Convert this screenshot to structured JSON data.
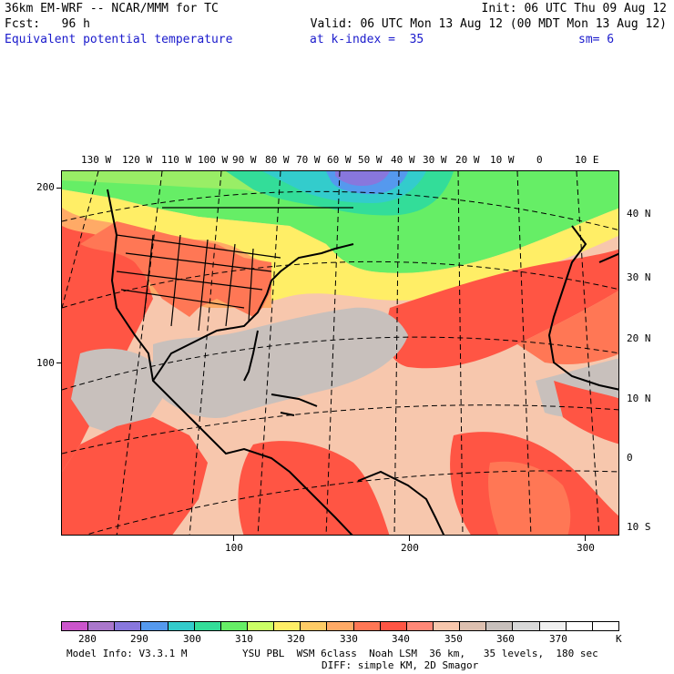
{
  "header": {
    "line1_left": "36km EM-WRF -- NCAR/MMM for TC",
    "line1_right": "Init: 06 UTC Thu 09 Aug 12",
    "line2_left": "Fcst:   96 h",
    "line2_right": "Valid: 06 UTC Mon 13 Aug 12 (00 MDT Mon 13 Aug 12)",
    "line3_field": "Equivalent potential temperature",
    "line3_kindex": "at k-index =  35",
    "line3_sm": "sm= 6"
  },
  "map": {
    "lon_labels": [
      "130 W",
      "120 W",
      "110 W",
      "100 W",
      "90 W",
      "80 W",
      "70 W",
      "60 W",
      "50 W",
      "40 W",
      "30 W",
      "20 W",
      "10 W",
      "0",
      "10 E"
    ],
    "lat_labels": [
      "40 N",
      "30 N",
      "20 N",
      "10 N",
      "0",
      "10 S"
    ],
    "left_axis": [
      "200",
      "100"
    ],
    "bottom_axis": [
      "100",
      "200",
      "300"
    ]
  },
  "colorbar": {
    "colors": [
      "#cc55cc",
      "#aa77cc",
      "#8877dd",
      "#5599ee",
      "#33cccc",
      "#33dd99",
      "#66ee66",
      "#ccff66",
      "#ffee66",
      "#ffcc66",
      "#ffaa66",
      "#ff7755",
      "#ff5544",
      "#ff8877",
      "#f7c7ad",
      "#ddc0b0",
      "#c8c0bc",
      "#d8d8d8",
      "#f0f0f0",
      "#ffffff",
      "#ffffff"
    ],
    "labels": [
      "280",
      "290",
      "300",
      "310",
      "320",
      "330",
      "340",
      "350",
      "360",
      "370",
      "K"
    ]
  },
  "footer": {
    "model_info": "Model Info: V3.3.1 M",
    "physics": "YSU PBL  WSM 6class  Noah LSM  36 km,   35 levels,  180 sec",
    "diff": "DIFF: simple KM, 2D Smagor"
  }
}
